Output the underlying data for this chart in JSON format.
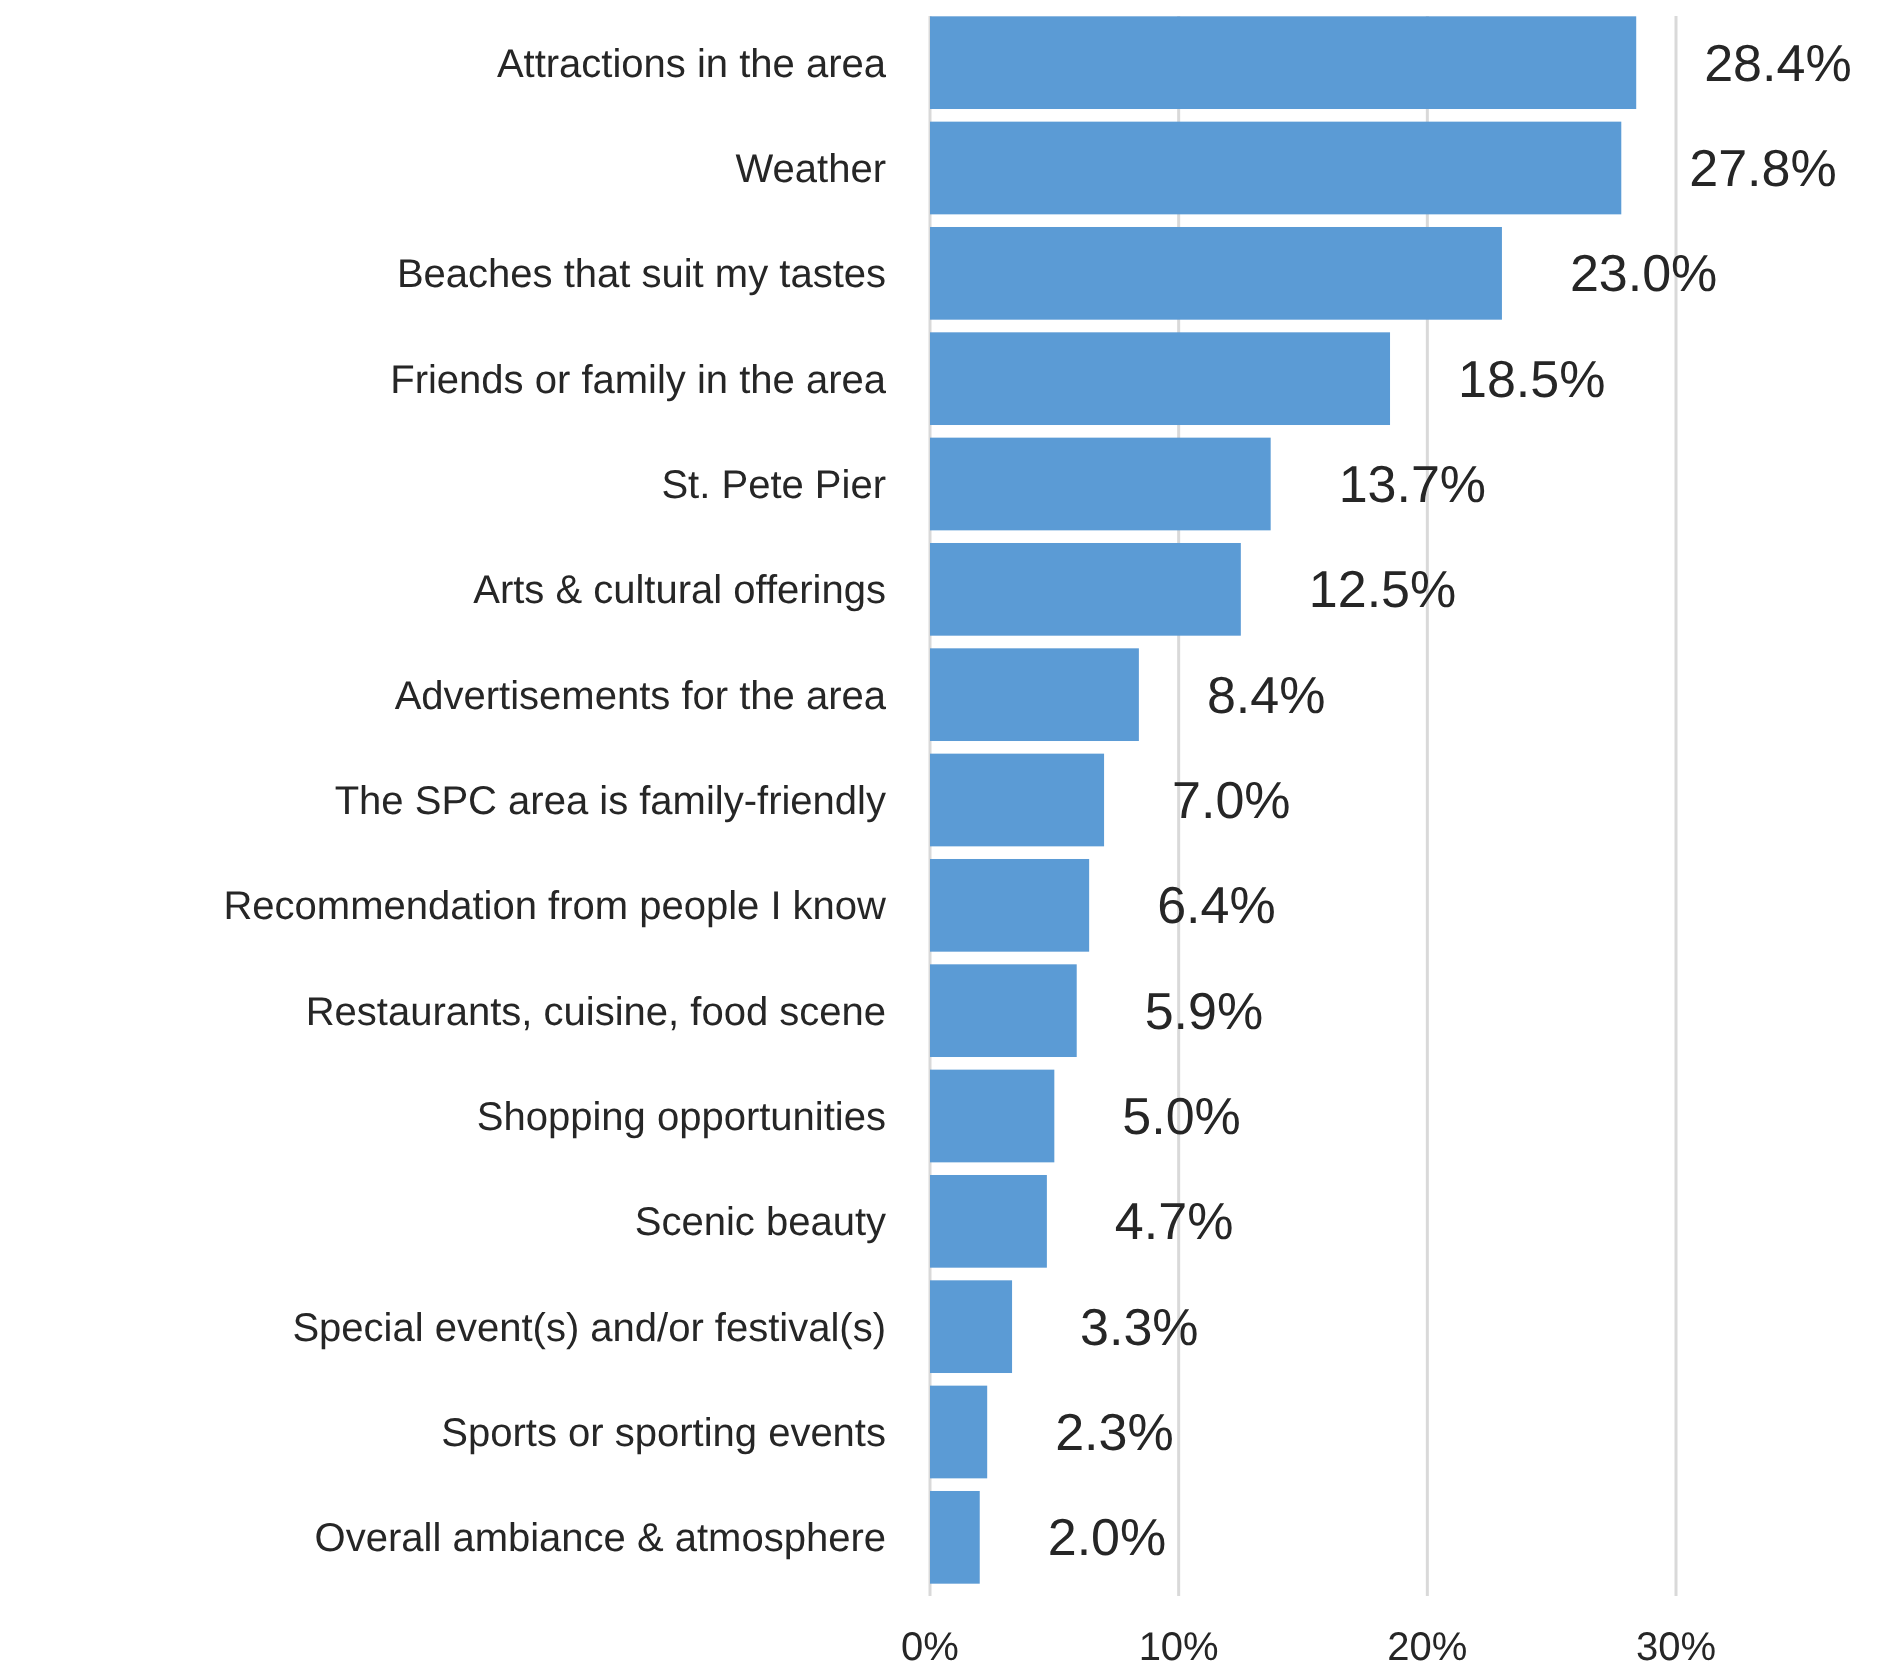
{
  "chart_data": {
    "type": "bar",
    "orientation": "horizontal",
    "categories": [
      "Attractions in the area",
      "Weather",
      "Beaches that suit my tastes",
      "Friends or family in the area",
      "St. Pete Pier",
      "Arts & cultural offerings",
      "Advertisements for the area",
      "The SPC area is family-friendly",
      "Recommendation from people I know",
      "Restaurants, cuisine, food scene",
      "Shopping opportunities",
      "Scenic beauty",
      "Special event(s) and/or festival(s)",
      "Sports or sporting events",
      "Overall ambiance & atmosphere"
    ],
    "values": [
      28.4,
      27.8,
      23.0,
      18.5,
      13.7,
      12.5,
      8.4,
      7.0,
      6.4,
      5.9,
      5.0,
      4.7,
      3.3,
      2.3,
      2.0
    ],
    "value_labels": [
      "28.4%",
      "27.8%",
      "23.0%",
      "18.5%",
      "13.7%",
      "12.5%",
      "8.4%",
      "7.0%",
      "6.4%",
      "5.9%",
      "5.0%",
      "4.7%",
      "3.3%",
      "2.3%",
      "2.0%"
    ],
    "color": "#5b9bd5",
    "xlim": [
      0,
      30
    ],
    "xticks": [
      {
        "value": 0,
        "label": "0%"
      },
      {
        "value": 10,
        "label": "10%"
      },
      {
        "value": 20,
        "label": "20%"
      },
      {
        "value": 30,
        "label": "30%"
      }
    ],
    "grid": "x"
  }
}
